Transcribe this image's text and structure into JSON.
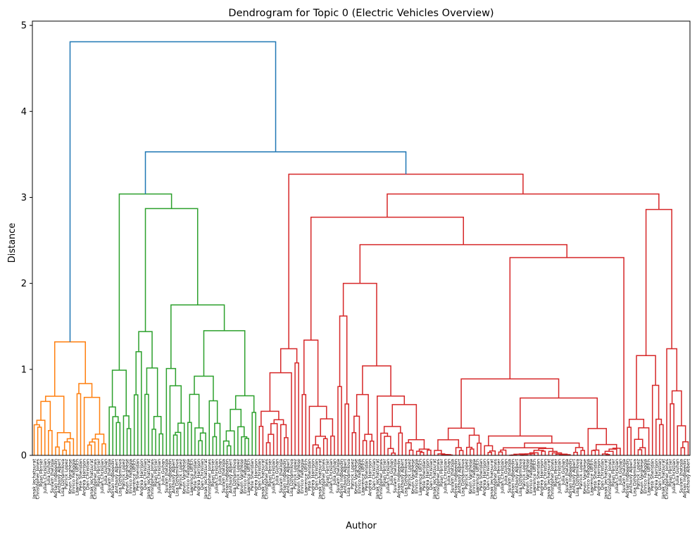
{
  "chart_data": {
    "type": "dendrogram",
    "title": "Dendrogram for Topic 0 (Electric Vehicles Overview)",
    "xlabel": "Author",
    "ylabel": "Distance",
    "ylim": [
      0,
      5.05
    ],
    "yticks": [
      0,
      1,
      2,
      3,
      4,
      5
    ],
    "grid": false,
    "leaf_count": 184,
    "leaf_labels_note": "184 rotated leaf labels are printed but unreadable at this resolution",
    "colors": {
      "root": "#1f77b4",
      "cluster_1": "#ff7f0e",
      "cluster_2": "#2ca02c",
      "cluster_3": "#d62728"
    },
    "clusters": [
      {
        "name": "cluster_1",
        "color": "#ff7f0e",
        "leaves": 21,
        "top_distance": 1.32
      },
      {
        "name": "cluster_2",
        "color": "#2ca02c",
        "leaves": 42,
        "top_distance": 3.04
      },
      {
        "name": "cluster_3",
        "color": "#d62728",
        "leaves": 121,
        "top_distance": 3.27
      }
    ],
    "top_merges": [
      {
        "distance": 4.81,
        "joins": [
          "cluster_1",
          "cluster_2 + cluster_3"
        ]
      },
      {
        "distance": 3.53,
        "joins": [
          "cluster_2",
          "cluster_3"
        ]
      },
      {
        "distance": 3.27,
        "within": "cluster_3"
      },
      {
        "distance": 3.04,
        "within": "cluster_2"
      },
      {
        "distance": 3.04,
        "within": "cluster_3"
      },
      {
        "distance": 2.87,
        "within": "cluster_2"
      },
      {
        "distance": 2.86,
        "within": "cluster_3"
      },
      {
        "distance": 2.77,
        "within": "cluster_3"
      },
      {
        "distance": 2.45,
        "within": "cluster_3"
      }
    ],
    "visible_leaf_labels": [
      "Janak Jechatsurat",
      "Christopher Jones",
      "Ryan Ferrier",
      "Julian Christian",
      "Julia Guhan",
      "Suvam Jhatiola",
      "Adrian Ingbeedin",
      "Anthony Albert",
      "Lisa Dzhamilova",
      "Patrick Lopez",
      "Kevin Varghese",
      "Enrico Faloggia",
      "Lawrence Ulrich",
      "Pete Sheridan",
      "Andrea Harrison",
      "Dan Christian"
    ]
  }
}
